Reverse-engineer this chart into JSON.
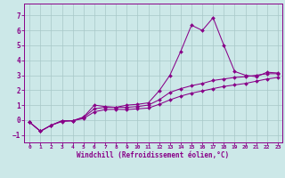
{
  "xlabel": "Windchill (Refroidissement éolien,°C)",
  "background_color": "#cce8e8",
  "grid_color": "#a8c8c8",
  "line_color": "#880088",
  "xlim": [
    -0.5,
    23.4
  ],
  "ylim": [
    -1.5,
    7.8
  ],
  "xticks": [
    0,
    1,
    2,
    3,
    4,
    5,
    6,
    7,
    8,
    9,
    10,
    11,
    12,
    13,
    14,
    15,
    16,
    17,
    18,
    19,
    20,
    21,
    22,
    23
  ],
  "yticks": [
    -1,
    0,
    1,
    2,
    3,
    4,
    5,
    6,
    7
  ],
  "x_data": [
    0,
    1,
    2,
    3,
    4,
    5,
    6,
    7,
    8,
    9,
    10,
    11,
    12,
    13,
    14,
    15,
    16,
    17,
    18,
    19,
    20,
    21,
    22,
    23
  ],
  "line1": [
    -0.15,
    -0.75,
    -0.35,
    -0.1,
    -0.05,
    0.2,
    1.0,
    0.9,
    0.85,
    1.0,
    1.05,
    1.15,
    1.95,
    3.0,
    4.6,
    6.35,
    6.0,
    6.85,
    5.0,
    3.25,
    3.0,
    2.9,
    3.2,
    3.15
  ],
  "line2": [
    -0.15,
    -0.75,
    -0.35,
    -0.05,
    -0.05,
    0.18,
    0.75,
    0.85,
    0.85,
    0.85,
    0.9,
    1.0,
    1.35,
    1.85,
    2.1,
    2.3,
    2.45,
    2.65,
    2.75,
    2.85,
    2.9,
    3.0,
    3.1,
    3.1
  ],
  "line3": [
    -0.15,
    -0.75,
    -0.35,
    -0.05,
    -0.05,
    0.1,
    0.55,
    0.7,
    0.72,
    0.7,
    0.75,
    0.8,
    1.05,
    1.35,
    1.6,
    1.8,
    1.95,
    2.1,
    2.25,
    2.35,
    2.45,
    2.6,
    2.75,
    2.85
  ]
}
